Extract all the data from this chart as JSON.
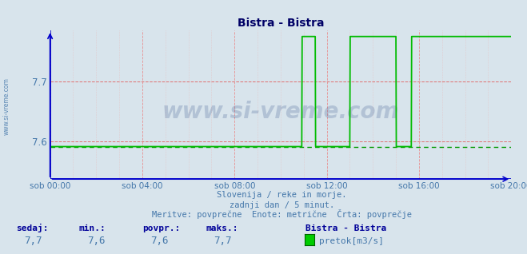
{
  "title": "Bistra - Bistra",
  "bg_color": "#d8e4ec",
  "line_color": "#00bb00",
  "avg_line_color": "#009900",
  "title_color": "#000066",
  "label_color": "#4477aa",
  "stat_bold_color": "#000099",
  "watermark": "www.si-vreme.com",
  "xlabel_ticks": [
    "sob 00:00",
    "sob 04:00",
    "sob 08:00",
    "sob 12:00",
    "sob 16:00",
    "sob 20:00"
  ],
  "v_grid_minutes": [
    0,
    240,
    480,
    720,
    960,
    1200
  ],
  "ylim": [
    7.538,
    7.785
  ],
  "yticks": [
    7.6,
    7.7
  ],
  "avg_value": 7.592,
  "footnote1": "Slovenija / reke in morje.",
  "footnote2": "zadnji dan / 5 minut.",
  "footnote3": "Meritve: povprečne  Enote: metrične  Črta: povprečje",
  "stat_labels": [
    "sedaj:",
    "min.:",
    "povpr.:",
    "maks.:"
  ],
  "stat_values": [
    "7,7",
    "7,6",
    "7,6",
    "7,7"
  ],
  "legend_title": "Bistra - Bistra",
  "legend_label": "pretok[m3/s]",
  "legend_color": "#00cc00",
  "t_points": [
    0,
    655,
    656,
    690,
    691,
    780,
    781,
    900,
    901,
    940,
    941,
    1200
  ],
  "v_points": [
    7.592,
    7.592,
    7.775,
    7.775,
    7.592,
    7.592,
    7.775,
    7.775,
    7.592,
    7.592,
    7.775,
    7.775
  ]
}
